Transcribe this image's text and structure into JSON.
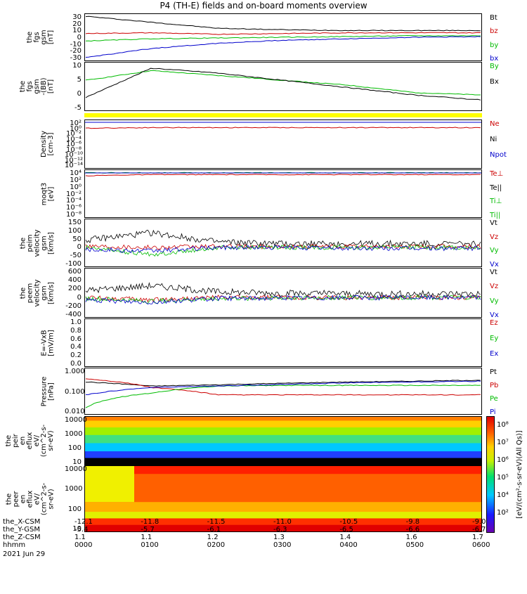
{
  "title": "P4 (TH-E) fields and on-board moments overview",
  "panels": [
    {
      "ylabel": "the\nfgs\ngsm\n[nT]",
      "ticks": [
        "30",
        "20",
        "10",
        "0",
        "-10",
        "-20",
        "-30"
      ],
      "legend": [
        {
          "text": "Bt",
          "color": "#000000"
        },
        {
          "text": "bz",
          "color": "#cc0000"
        },
        {
          "text": "by",
          "color": "#00bb00"
        },
        {
          "text": "bx",
          "color": "#0000cc"
        }
      ]
    },
    {
      "ylabel": "the\nfgs\ngsm\n-(BB)\n[nT]",
      "ticks": [
        "10",
        "5",
        "0",
        "-5"
      ],
      "legend": [
        {
          "text": "By",
          "color": "#00bb00"
        },
        {
          "text": "Bx",
          "color": "#000000"
        }
      ]
    },
    {
      "ylabel": "Density\n[cm-3]",
      "ticks": [
        "10²",
        "10⁰",
        "10⁻²",
        "10⁻⁴",
        "10⁻⁶",
        "10⁻⁸",
        "10⁻¹⁰",
        "10⁻¹²",
        "10⁻¹⁴"
      ],
      "legend": [
        {
          "text": "Ne",
          "color": "#cc0000"
        },
        {
          "text": "Ni",
          "color": "#000000"
        },
        {
          "text": "Npot",
          "color": "#0000cc"
        }
      ]
    },
    {
      "ylabel": "moqt3\n[eV]",
      "ticks": [
        "10⁴",
        "10²",
        "10⁰",
        "10⁻²",
        "10⁻⁴",
        "10⁻⁶",
        "10⁻⁸"
      ],
      "legend": [
        {
          "text": "Te⊥",
          "color": "#cc0000"
        },
        {
          "text": "Te||",
          "color": "#000000"
        },
        {
          "text": "Ti⊥",
          "color": "#00bb00"
        },
        {
          "text": "Ti||",
          "color": "#00bb00"
        }
      ]
    },
    {
      "ylabel": "the\npeim\nvelocity\ngsm\n[km/s]",
      "ticks": [
        "150",
        "100",
        "50",
        "0",
        "-50",
        "-100"
      ],
      "legend": [
        {
          "text": "Vt",
          "color": "#000000"
        },
        {
          "text": "Vz",
          "color": "#cc0000"
        },
        {
          "text": "Vy",
          "color": "#00bb00"
        },
        {
          "text": "Vx",
          "color": "#0000cc"
        }
      ]
    },
    {
      "ylabel": "the\npeem\nvelocity\ngsm\n[km/s]",
      "ticks": [
        "600",
        "400",
        "200",
        "0",
        "-200",
        "-400"
      ],
      "legend": [
        {
          "text": "Vt",
          "color": "#000000"
        },
        {
          "text": "Vz",
          "color": "#cc0000"
        },
        {
          "text": "Vy",
          "color": "#00bb00"
        },
        {
          "text": "Vx",
          "color": "#0000cc"
        }
      ]
    },
    {
      "ylabel": "E=-VxB\n[mV/m]",
      "ticks": [
        "1.0",
        "0.8",
        "0.6",
        "0.4",
        "0.2",
        "0.0"
      ],
      "legend": [
        {
          "text": "Ez",
          "color": "#cc0000"
        },
        {
          "text": "Ey",
          "color": "#00bb00"
        },
        {
          "text": "Ex",
          "color": "#0000cc"
        }
      ]
    },
    {
      "ylabel": "Pressure\n[nPa]",
      "ticks": [
        "1.000",
        "0.100",
        "0.010"
      ],
      "legend": [
        {
          "text": "Pt",
          "color": "#000000"
        },
        {
          "text": "Pb",
          "color": "#cc0000"
        },
        {
          "text": "Pe",
          "color": "#00bb00"
        },
        {
          "text": "Pi",
          "color": "#0000cc"
        }
      ]
    },
    {
      "ylabel": "the\npeir\nen\neflux\neV/\n(cm^2-s-\nsr-eV)",
      "ticks": [
        "10000",
        "1000",
        "100",
        "10"
      ]
    },
    {
      "ylabel": "the\npeer\nen\neflux\neV/\n(cm^2-s-\nsr-eV)",
      "ticks": [
        "10000",
        "1000",
        "100",
        "10"
      ]
    }
  ],
  "colorbar": {
    "label": "[eV/(cm²-s-sr-eV)(All Qs)]",
    "ticks": [
      "10⁸",
      "10⁷",
      "10⁶",
      "10⁵",
      "10⁴",
      "10²"
    ]
  },
  "x_axis": {
    "rows": [
      {
        "label": "the_X-CSM",
        "values": [
          "-12.1",
          "-11.8",
          "-11.5",
          "-11.0",
          "-10.5",
          "-9.8",
          "-9.0"
        ]
      },
      {
        "label": "the_Y-GSM",
        "values": [
          "-5.4",
          "-5.7",
          "-6.1",
          "-6.3",
          "-6.5",
          "-6.6",
          "-6.7"
        ]
      },
      {
        "label": "the_Z-CSM",
        "values": [
          "1.1",
          "1.1",
          "1.2",
          "1.3",
          "1.4",
          "1.6",
          "1.7"
        ]
      },
      {
        "label": "hhmm",
        "values": [
          "0000",
          "0100",
          "0200",
          "0300",
          "0400",
          "0500",
          "0600"
        ]
      }
    ],
    "date": "2021 Jun 29"
  },
  "colors": {
    "black": "#000000",
    "red": "#cc0000",
    "green": "#00bb00",
    "blue": "#0000cc",
    "yellow": "#ffff00"
  },
  "chart_data": {
    "type": "line",
    "title": "P4 (TH-E) fields and on-board moments overview",
    "x": [
      "0000",
      "0100",
      "0200",
      "0300",
      "0400",
      "0500",
      "0600"
    ],
    "xlabel": "hhmm",
    "panels": [
      {
        "ylabel": "the fgs gsm [nT]",
        "ylim": [
          -30,
          30
        ],
        "series": [
          {
            "name": "Bt",
            "values": [
              28,
              20,
              12,
              10,
              9,
              9,
              9
            ]
          },
          {
            "name": "bz",
            "values": [
              5,
              6,
              4,
              5,
              6,
              6,
              6
            ]
          },
          {
            "name": "by",
            "values": [
              -5,
              -2,
              -1,
              0,
              1,
              2,
              2
            ]
          },
          {
            "name": "bx",
            "values": [
              -27,
              -15,
              -8,
              -4,
              -2,
              0,
              1
            ]
          }
        ]
      },
      {
        "ylabel": "the fgs gsm [nT]",
        "ylim": [
          -7,
          12
        ],
        "series": [
          {
            "name": "By",
            "values": [
              5,
              9,
              7,
              5,
              3,
              0,
              -1
            ]
          },
          {
            "name": "Bx",
            "values": [
              -2,
              10,
              8,
              5,
              2,
              -1,
              -3
            ]
          }
        ]
      },
      {
        "ylabel": "Density [cm-3]",
        "ylim": [
          "1e-14",
          "1e2"
        ],
        "series": [
          {
            "name": "Ne",
            "values": [
              0.3,
              0.5,
              0.5,
              0.5,
              0.5,
              0.5,
              0.5
            ]
          }
        ]
      },
      {
        "ylabel": "moqt3 [eV]",
        "ylim": [
          "1e-8",
          "1e4"
        ],
        "series": [
          {
            "name": "Te⊥",
            "values": [
              500,
              1000,
              1000,
              1000,
              1000,
              1000,
              1000
            ]
          },
          {
            "name": "Ti||",
            "values": [
              3000,
              3000,
              3000,
              3000,
              3000,
              3000,
              3000
            ]
          }
        ]
      },
      {
        "ylabel": "the peim velocity gsm [km/s]",
        "ylim": [
          -100,
          150
        ],
        "series": [
          {
            "name": "Vt",
            "values": [
              40,
              80,
              30,
              20,
              20,
              20,
              20
            ]
          },
          {
            "name": "Vz",
            "values": [
              10,
              0,
              5,
              5,
              5,
              5,
              5
            ]
          },
          {
            "name": "Vy",
            "values": [
              0,
              -40,
              0,
              0,
              0,
              0,
              0
            ]
          },
          {
            "name": "Vx",
            "values": [
              -10,
              -20,
              0,
              0,
              -5,
              -5,
              -5
            ]
          }
        ]
      },
      {
        "ylabel": "the peem velocity gsm [km/s]",
        "ylim": [
          -400,
          600
        ],
        "series": [
          {
            "name": "Vt",
            "values": [
              150,
              250,
              120,
              90,
              80,
              80,
              80
            ]
          },
          {
            "name": "Vz",
            "values": [
              0,
              -50,
              0,
              0,
              0,
              0,
              0
            ]
          },
          {
            "name": "Vy",
            "values": [
              -20,
              -80,
              -20,
              -10,
              0,
              0,
              0
            ]
          },
          {
            "name": "Vx",
            "values": [
              -60,
              -100,
              -20,
              -10,
              -5,
              0,
              0
            ]
          }
        ]
      },
      {
        "ylabel": "E=-VxB [mV/m]",
        "ylim": [
          0,
          1
        ],
        "series": []
      },
      {
        "ylabel": "Pressure [nPa]",
        "ylim": [
          "0.004",
          "1.0"
        ],
        "series": [
          {
            "name": "Pt",
            "values": [
              0.2,
              0.12,
              0.14,
              0.17,
              0.2,
              0.22,
              0.25
            ]
          },
          {
            "name": "Pb",
            "values": [
              0.3,
              0.1,
              0.04,
              0.04,
              0.04,
              0.04,
              0.04
            ]
          },
          {
            "name": "Pe",
            "values": [
              0.008,
              0.05,
              0.12,
              0.13,
              0.13,
              0.13,
              0.13
            ]
          },
          {
            "name": "Pi",
            "values": [
              0.04,
              0.1,
              0.12,
              0.15,
              0.18,
              0.2,
              0.22
            ]
          }
        ]
      }
    ]
  }
}
